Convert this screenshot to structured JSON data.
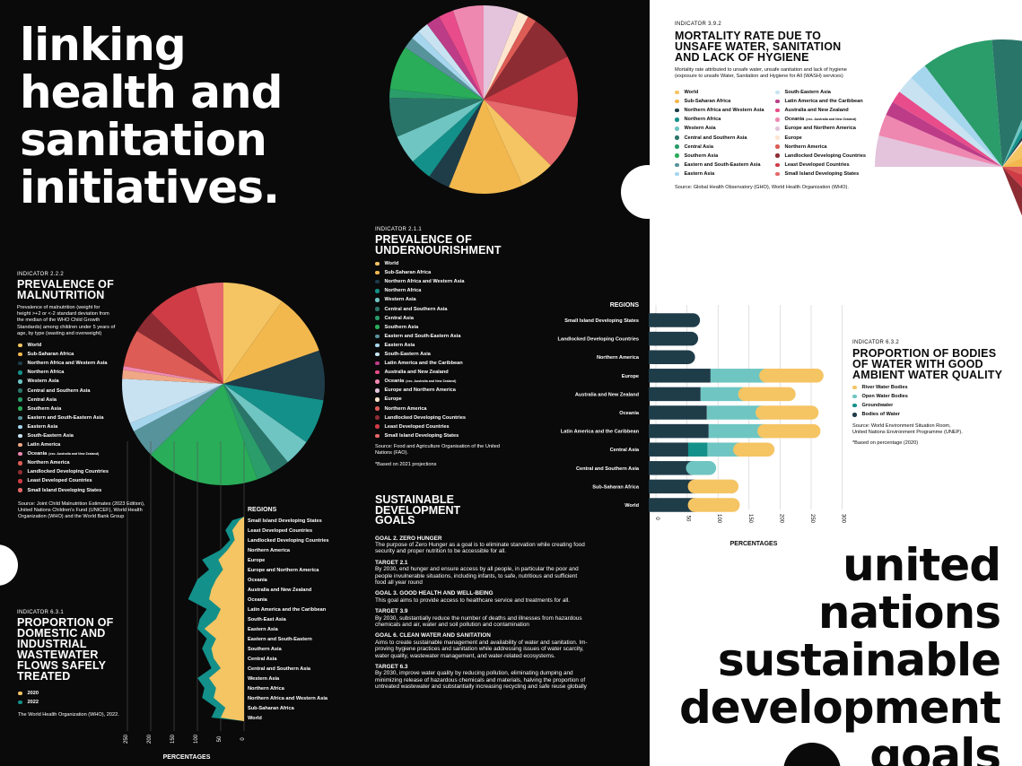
{
  "headline_left": [
    "linking",
    "health and",
    "sanitation",
    "initiatives."
  ],
  "headline_right": [
    "united",
    "nations",
    "sustainable",
    "development",
    "goals"
  ],
  "colors": {
    "World": "#f5c463",
    "Sub-Saharan Africa": "#f2b84e",
    "Northern Africa and Western Asia": "#1f3c49",
    "Northern Africa": "#139089",
    "Western Asia": "#6ec5c2",
    "Central and Southern Asia": "#2a7569",
    "Central Asia": "#2a9d6a",
    "Southern Asia": "#29ad59",
    "Eastern and South-Eastern Asia": "#57939a",
    "Eastern Asia": "#a6d6ee",
    "South-Eastern Asia": "#c8e2f1",
    "Latin America and the Caribbean": "#bd3c87",
    "Latin America": "#f0a785",
    "Australia and New Zealand": "#e84c8a",
    "Oceania": "#ef88b0",
    "Europe and Northern America": "#e3c4dc",
    "Europe": "#fde5cf",
    "Northern America": "#dd5c55",
    "Landlocked Developing Countries": "#8e2c34",
    "Least Developed Countries": "#cf3c46",
    "Small Island Developing States": "#e6686a"
  },
  "malnutrition": {
    "indicator": "INDICATOR 2.2.2",
    "title": [
      "PREVALENCE OF",
      "MALNUTRITION"
    ],
    "description": [
      "Prevalence of malnutrition (weight for",
      "height >+2 or <-2 standard deviation from",
      "the median of the WHO Child Growth",
      "Standards) among children under 5 years of",
      "age, by type (wasting and overweight)"
    ],
    "legend": [
      "World",
      "Sub-Saharan Africa",
      "Northern Africa and Western Asia",
      "Northern Africa",
      "Western Asia",
      "Central and Southern Asia",
      "Central Asia",
      "Southern Asia",
      "Eastern and South-Eastern Asia",
      "Eastern Asia",
      "South-Eastern Asia",
      "Latin America",
      "Oceania",
      "Northern America",
      "Landlocked Developing Countries",
      "Least Developed Countries",
      "Small Island Developing States"
    ],
    "oceania_note": "(exc. Australia and New Zealand)",
    "source": [
      "Source: Joint Child Malnutrition Estimates (2023 Edition),",
      "United Nations Children's Fund (UNICEF), World Health",
      "Organization (WHO) and the World Bank Group"
    ]
  },
  "undernourishment": {
    "indicator": "INDICATOR 2.1.1",
    "title": [
      "PREVALENCE OF",
      "UNDERNOURISHMENT"
    ],
    "legend": [
      "World",
      "Sub-Saharan Africa",
      "Northern Africa and Western Asia",
      "Northern Africa",
      "Western Asia",
      "Central and Southern Asia",
      "Central Asia",
      "Southern Asia",
      "Eastern and South-Eastern Asia",
      "Eastern Asia",
      "South-Eastern Asia",
      "Latin America and the Caribbean",
      "Australia and New Zealand",
      "Oceania",
      "Europe and Northern America",
      "Europe",
      "Northern America",
      "Landlocked Developing Countries",
      "Least Developed Countries",
      "Small Island Developing States"
    ],
    "oceania_note": "(exc. Australia and New Zealand)",
    "source": [
      "Source: Food and Agriculture Organisation of the United",
      "Nations (FAO)."
    ],
    "note": "*Based on 2021 projections"
  },
  "mortality": {
    "indicator": "INDICATOR 3.9.2",
    "title": [
      "MORTALITY RATE DUE TO",
      "UNSAFE WATER, SANITATION",
      "AND LACK OF HYGIENE"
    ],
    "description": [
      "Mortality rate attributed to unsafe water, unsafe sanitation and lack of hygiene",
      "(exposure to unsafe Water, Sanitation and Hygiene for All (WASH) services)"
    ],
    "legend_left": [
      "World",
      "Sub-Saharan Africa",
      "Northern Africa and Western Asia",
      "Northern Africa",
      "Western Asia",
      "Central and Southern Asia",
      "Central Asia",
      "Southern Asia",
      "Eastern and South-Eastern Asia",
      "Eastern Asia"
    ],
    "legend_right": [
      "South-Eastern Asia",
      "Latin America and the Caribbean",
      "Australia and New Zealand",
      "Oceania",
      "Europe and Northern America",
      "Europe",
      "Northern America",
      "Landlocked Developing Countries",
      "Least Developed Countries",
      "Small Island Developing States"
    ],
    "oceania_note": "(exc. Australia and New Zealand)",
    "source": "Source: Global Health Observatory (GHO), World Health Organization (WHO)."
  },
  "water_bodies": {
    "indicator": "INDICATOR 6.3.2",
    "title": [
      "PROPORTION OF BODIES",
      "OF WATER WITH GOOD",
      "AMBIENT WATER QUALITY"
    ],
    "legend": [
      {
        "label": "River Water Bodies",
        "color": "#f5c463"
      },
      {
        "label": "Open Water Bodies",
        "color": "#6ec5c2"
      },
      {
        "label": "Groundwater",
        "color": "#139089"
      },
      {
        "label": "Bodies of Water",
        "color": "#1f3c49"
      }
    ],
    "source": [
      "Source: World Environment Situation Room,",
      "United Nations Environment Programme (UNEP)."
    ],
    "note": "*Based on percentage (2020)"
  },
  "wastewater": {
    "indicator": "INDICATOR 6.3.1",
    "title": [
      "PROPORTION OF",
      "DOMESTIC AND",
      "INDUSTRIAL",
      "WASTEWATER",
      "FLOWS SAFELY",
      "TREATED"
    ],
    "legend": [
      {
        "label": "2020",
        "color": "#f5c463"
      },
      {
        "label": "2022",
        "color": "#139089"
      }
    ],
    "source": "The World Health Organization (WHO), 2022."
  },
  "sdg": {
    "title": [
      "SUSTAINABLE",
      "DEVELOPMENT",
      "GOALS"
    ],
    "sections": [
      {
        "heading": "GOAL 2. ZERO HUNGER",
        "lines": [
          "The purpose of Zero Hunger as a goal is to eliminate starvation while creating food",
          "security and proper nutrition to be accessible for all."
        ]
      },
      {
        "heading": "TARGET 2.1",
        "lines": [
          "By 2030, end hunger and ensure access by all people, in particular the poor and",
          "people invulnerable situations, including infants, to safe, nutritious and sufficient",
          "food all year round"
        ]
      },
      {
        "heading": "GOAL 3. GOOD HEALTH AND WELL-BEING",
        "lines": [
          "This goal aims to provide access to healthcare service and treatments for all."
        ]
      },
      {
        "heading": "TARGET 3.9",
        "lines": [
          "By 2030, substantially reduce the number of deaths and illnesses from hazardous",
          "chemicals and air, water and soil pollution and contamination"
        ]
      },
      {
        "heading": "GOAL 6. CLEAN WATER AND SANITATION",
        "lines": [
          "Aims to create sustainable management and availability of water and sanitation. Im-",
          "proving hygiene practices and sanitation while addressing issues of water scarcity,",
          "water quality, wastewater management, and water-related ecosystems."
        ]
      },
      {
        "heading": "TARGET 6.3",
        "lines": [
          "By 2030, improve water quality by reducing pollution, eliminating dumping and",
          "minimizing release of hazardous chemicals and materials, halving the proportion of",
          "untreated wastewater and substantially increasing recycling and safe reuse globally"
        ]
      }
    ]
  },
  "chart_data": [
    {
      "id": "malnutrition_pie",
      "type": "pie",
      "title": "PREVALENCE OF MALNUTRITION",
      "slices": [
        {
          "label": "World",
          "value": 7.8
        },
        {
          "label": "Sub-Saharan Africa",
          "value": 7.8
        },
        {
          "label": "Northern Africa and Western Asia",
          "value": 6.3
        },
        {
          "label": "Northern Africa",
          "value": 5.7
        },
        {
          "label": "Western Asia",
          "value": 3.4
        },
        {
          "label": "Central and Southern Asia",
          "value": 2.3
        },
        {
          "label": "Central Asia",
          "value": 2.1
        },
        {
          "label": "Southern Asia",
          "value": 14.4
        },
        {
          "label": "Eastern and South-Eastern Asia",
          "value": 3.6
        },
        {
          "label": "Eastern Asia",
          "value": 1.1
        },
        {
          "label": "South-Eastern Asia",
          "value": 5.7
        },
        {
          "label": "Latin America",
          "value": 1.1
        },
        {
          "label": "Oceania",
          "value": 0.5
        },
        {
          "label": "Northern America",
          "value": 4.7
        },
        {
          "label": "Landlocked Developing Countries",
          "value": 2.9
        },
        {
          "label": "Least Developed Countries",
          "value": 6.5
        },
        {
          "label": "Small Island Developing States",
          "value": 3.5
        }
      ]
    },
    {
      "id": "undernourishment_pie",
      "type": "pie",
      "title": "PREVALENCE OF UNDERNOURISHMENT",
      "slices": [
        {
          "label": "Europe and Northern America",
          "value": 4.0
        },
        {
          "label": "Europe",
          "value": 1.2
        },
        {
          "label": "Northern America",
          "value": 1.0
        },
        {
          "label": "Landlocked Developing Countries",
          "value": 5.4
        },
        {
          "label": "Least Developed Countries",
          "value": 7.0
        },
        {
          "label": "Small Island Developing States",
          "value": 6.2
        },
        {
          "label": "World",
          "value": 3.9
        },
        {
          "label": "Sub-Saharan Africa",
          "value": 8.5
        },
        {
          "label": "Northern Africa and Western Asia",
          "value": 2.5
        },
        {
          "label": "Northern Africa",
          "value": 2.5
        },
        {
          "label": "Western Asia",
          "value": 3.3
        },
        {
          "label": "Central and Southern Asia",
          "value": 4.5
        },
        {
          "label": "Central Asia",
          "value": 1.0
        },
        {
          "label": "Southern Asia",
          "value": 5.0
        },
        {
          "label": "Eastern and South-Eastern Asia",
          "value": 1.3
        },
        {
          "label": "Eastern Asia",
          "value": 1.0
        },
        {
          "label": "South-Eastern Asia",
          "value": 1.3
        },
        {
          "label": "Latin America and the Caribbean",
          "value": 1.6
        },
        {
          "label": "Australia and New Zealand",
          "value": 1.7
        },
        {
          "label": "Oceania",
          "value": 3.5
        }
      ]
    },
    {
      "id": "mortality_pie",
      "type": "pie",
      "title": "MORTALITY RATE DUE TO UNSAFE WATER, SANITATION AND LACK OF HYGIENE",
      "slices": [
        {
          "label": "Europe and Northern America",
          "value": 2.6
        },
        {
          "label": "Oceania",
          "value": 1.8
        },
        {
          "label": "Latin America and the Caribbean",
          "value": 1.2
        },
        {
          "label": "Australia and New Zealand",
          "value": 1.0
        },
        {
          "label": "South-Eastern Asia",
          "value": 1.5
        },
        {
          "label": "Eastern Asia",
          "value": 1.5
        },
        {
          "label": "Central Asia",
          "value": 6.0
        },
        {
          "label": "Central and Southern Asia",
          "value": 5.0
        },
        {
          "label": "Western Asia",
          "value": 0.8
        },
        {
          "label": "Northern Africa",
          "value": 1.2
        },
        {
          "label": "Northern Africa and Western Asia",
          "value": 0.6
        },
        {
          "label": "Europe",
          "value": 0.6
        },
        {
          "label": "World",
          "value": 4.5
        },
        {
          "label": "Sub-Saharan Africa",
          "value": 4.5
        },
        {
          "label": "Northern America",
          "value": 4.0
        },
        {
          "label": "Least Developed Countries",
          "value": 4.5
        },
        {
          "label": "Landlocked Developing Countries",
          "value": 4.0
        }
      ]
    },
    {
      "id": "water_bodies_bars",
      "type": "bar",
      "title": "PROPORTION OF BODIES OF WATER WITH GOOD AMBIENT WATER QUALITY",
      "orientation": "horizontal-stacked",
      "xlabel": "PERCENTAGES",
      "axis_title": "REGIONS",
      "categories": [
        "Small Island Developing States",
        "Landlocked Developing Countries",
        "Northern America",
        "Europe",
        "Australia and New Zealand",
        "Oceania",
        "Latin America and the Caribbean",
        "Central Asia",
        "Central and Southern Asia",
        "Sub-Saharan Africa",
        "World"
      ],
      "series": [
        {
          "name": "Bodies of Water",
          "values": [
            71,
            68,
            63,
            88,
            72,
            82,
            85,
            52,
            60,
            63,
            63
          ]
        },
        {
          "name": "Groundwater",
          "values": [
            0,
            0,
            0,
            0,
            0,
            0,
            0,
            31,
            0,
            0,
            0
          ]
        },
        {
          "name": "Open Water Bodies",
          "values": [
            0,
            0,
            0,
            90,
            72,
            90,
            90,
            53,
            37,
            0,
            0
          ]
        },
        {
          "name": "River Water Bodies",
          "values": [
            0,
            0,
            0,
            92,
            81,
            90,
            90,
            55,
            0,
            70,
            72
          ]
        }
      ],
      "ticks": [
        0,
        50,
        100,
        150,
        200,
        250,
        300
      ],
      "xlim": [
        0,
        300
      ]
    },
    {
      "id": "wastewater_area",
      "type": "area",
      "title": "PROPORTION OF DOMESTIC AND INDUSTRIAL WASTEWATER FLOWS SAFELY TREATED",
      "orientation": "horizontal",
      "xlabel": "PERCENTAGES",
      "axis_title": "REGIONS",
      "categories": [
        "Small Island Developing States",
        "Least Developed Countries",
        "Landlocked Developing Countries",
        "Northern America",
        "Europe",
        "Europe and Northern America",
        "Oceania",
        "Australia and New Zealand",
        "Oceania",
        "Latin America and the Caribbean",
        "South-East Asia",
        "Eastern Asia",
        "Eastern and South-Eastern",
        "Southern Asia",
        "Central Asia",
        "Central and Southern Asia",
        "Western Asia",
        "Northern Africa",
        "Northern Africa and Western Asia",
        "Sub-Saharan Africa",
        "World"
      ],
      "series": [
        {
          "name": "2020",
          "values": [
            10,
            25,
            20,
            35,
            55,
            45,
            60,
            70,
            75,
            50,
            60,
            85,
            60,
            70,
            65,
            50,
            75,
            60,
            65,
            40,
            50
          ]
        },
        {
          "name": "2022",
          "values": [
            25,
            40,
            30,
            50,
            90,
            75,
            100,
            110,
            120,
            80,
            95,
            100,
            80,
            90,
            80,
            70,
            100,
            85,
            90,
            60,
            70
          ]
        }
      ],
      "ticks": [
        250,
        200,
        150,
        100,
        50,
        0
      ],
      "xlim": [
        0,
        250
      ]
    }
  ]
}
